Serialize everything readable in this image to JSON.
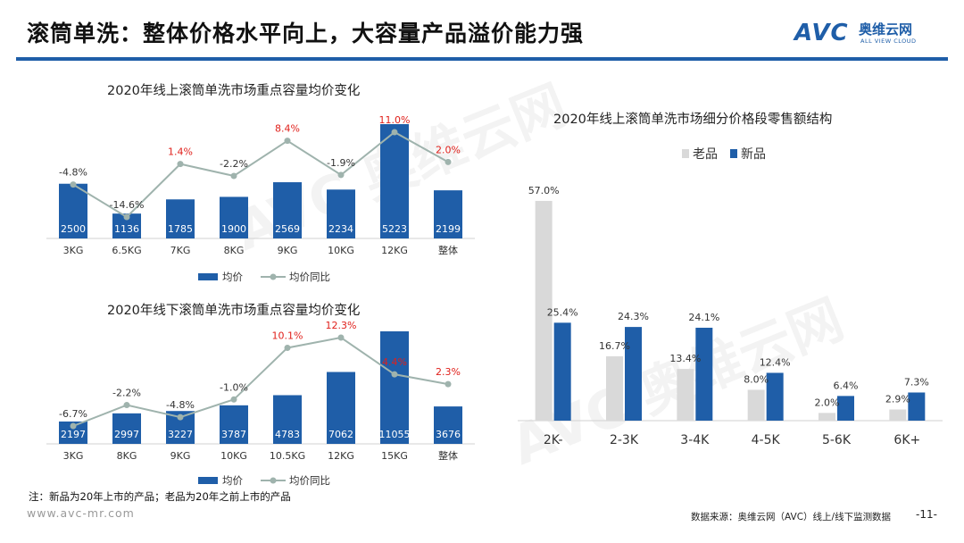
{
  "header": {
    "title": "滚筒单洗：整体价格水平向上，大容量产品溢价能力强",
    "logo_mark": "AVC",
    "logo_cn": "奥维云网",
    "logo_en": "ALL VIEW CLOUD"
  },
  "watermark": "AVC 奥维云网",
  "colors": {
    "accent": "#1f5ea8",
    "line": "#9fb3ad",
    "old": "#d9d9d9",
    "highlight": "#e0201b"
  },
  "chart_data": [
    {
      "id": "online",
      "type": "bar",
      "title": "2020年线上滚筒单洗市场重点容量均价变化",
      "categories": [
        "3KG",
        "6.5KG",
        "7KG",
        "8KG",
        "9KG",
        "10KG",
        "12KG",
        "整体"
      ],
      "series": [
        {
          "name": "均价",
          "type": "bar",
          "values": [
            2500,
            1136,
            1785,
            1900,
            2569,
            2234,
            5223,
            2199
          ]
        },
        {
          "name": "均价同比",
          "type": "line",
          "values": [
            -4.8,
            -14.6,
            1.4,
            -2.2,
            8.4,
            -1.9,
            11.0,
            2.0
          ],
          "labels": [
            "-4.8%",
            "-14.6%",
            "1.4%",
            "-2.2%",
            "8.4%",
            "-1.9%",
            "11.0%",
            "2.0%"
          ]
        }
      ],
      "legend": [
        "均价",
        "均价同比"
      ]
    },
    {
      "id": "offline",
      "type": "bar",
      "title": "2020年线下滚筒单洗市场重点容量均价变化",
      "categories": [
        "3KG",
        "8KG",
        "9KG",
        "10KG",
        "10.5KG",
        "12KG",
        "15KG",
        "整体"
      ],
      "series": [
        {
          "name": "均价",
          "type": "bar",
          "values": [
            2197,
            2997,
            3227,
            3787,
            4783,
            7062,
            11055,
            3676
          ]
        },
        {
          "name": "均价同比",
          "type": "line",
          "values": [
            -6.7,
            -2.2,
            -4.8,
            -1.0,
            10.1,
            12.3,
            4.4,
            2.3
          ],
          "labels": [
            "-6.7%",
            "-2.2%",
            "-4.8%",
            "-1.0%",
            "10.1%",
            "12.3%",
            "4.4%",
            "2.3%"
          ]
        }
      ],
      "legend": [
        "均价",
        "均价同比"
      ]
    },
    {
      "id": "segments",
      "type": "bar",
      "title": "2020年线上滚筒单洗市场细分价格段零售额结构",
      "categories": [
        "2K-",
        "2-3K",
        "3-4K",
        "4-5K",
        "5-6K",
        "6K+"
      ],
      "series": [
        {
          "name": "老品",
          "values": [
            57.0,
            16.7,
            13.4,
            8.0,
            2.0,
            2.9
          ],
          "labels": [
            "57.0%",
            "16.7%",
            "13.4%",
            "8.0%",
            "2.0%",
            "2.9%"
          ]
        },
        {
          "name": "新品",
          "values": [
            25.4,
            24.3,
            24.1,
            12.4,
            6.4,
            7.3
          ],
          "labels": [
            "25.4%",
            "24.3%",
            "24.1%",
            "12.4%",
            "6.4%",
            "7.3%"
          ]
        }
      ],
      "legend": [
        "老品",
        "新品"
      ],
      "ylim": [
        0,
        60
      ]
    }
  ],
  "footer": {
    "note": "注：新品为20年上市的产品；老品为20年之前上市的产品",
    "site": "www.avc-mr.com",
    "source": "数据来源：奥维云网（AVC）线上/线下监测数据",
    "page": "-11-"
  }
}
